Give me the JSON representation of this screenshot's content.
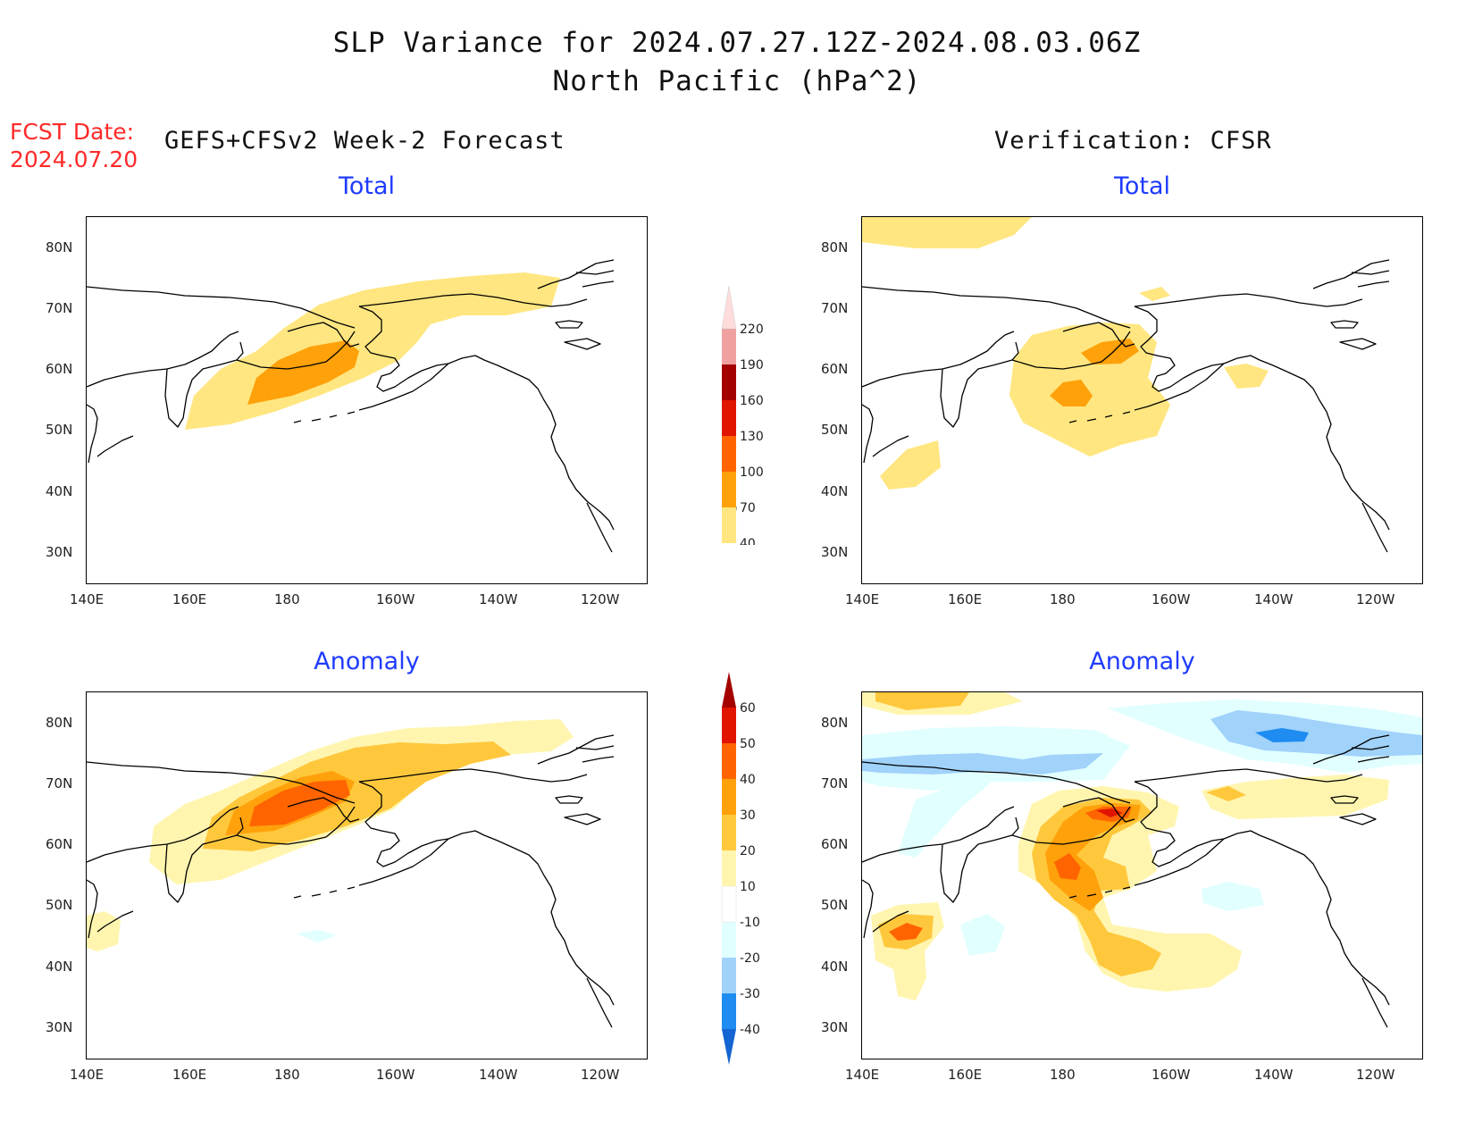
{
  "title": {
    "line1": "SLP Variance for 2024.07.27.12Z-2024.08.03.06Z",
    "line2": "North Pacific (hPa^2)"
  },
  "fcst_date": {
    "label": "FCST Date:",
    "value": "2024.07.20"
  },
  "headers": {
    "left": "GEFS+CFSv2 Week-2 Forecast",
    "right": "Verification: CFSR"
  },
  "panels": [
    {
      "id": "forecast-total",
      "title": "Total"
    },
    {
      "id": "verification-total",
      "title": "Total"
    },
    {
      "id": "forecast-anomaly",
      "title": "Anomaly"
    },
    {
      "id": "verification-anomaly",
      "title": "Anomaly"
    }
  ],
  "axes": {
    "lon_ticks": [
      "140E",
      "160E",
      "180",
      "160W",
      "140W",
      "120W"
    ],
    "lat_ticks": [
      "80N",
      "70N",
      "60N",
      "50N",
      "40N",
      "30N"
    ]
  },
  "colorbars": {
    "total": {
      "levels": [
        "40",
        "70",
        "100",
        "130",
        "160",
        "190",
        "220"
      ],
      "colors": [
        "#ffe680",
        "#ffa10a",
        "#ff6400",
        "#e11400",
        "#a50000",
        "#f0a0a0",
        "#ffdcdc"
      ]
    },
    "anomaly": {
      "levels": [
        "-40",
        "-30",
        "-20",
        "-10",
        "10",
        "20",
        "30",
        "40",
        "50",
        "60"
      ],
      "colors": [
        "#1464d2",
        "#1e8cf0",
        "#a0d2fa",
        "#e1ffff",
        "#ffffff",
        "#fff5af",
        "#ffc83c",
        "#ffa10a",
        "#ff6400",
        "#e11400",
        "#a50000"
      ]
    }
  }
}
